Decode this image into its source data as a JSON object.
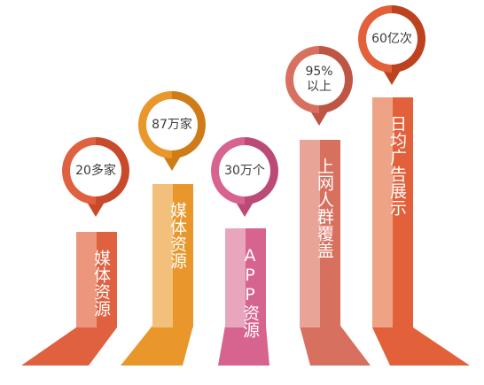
{
  "items": [
    {
      "value": "20多家",
      "label": "媒体资源",
      "colors": {
        "main": "#e0613f",
        "light": "#ec967d",
        "dark": "#c84a2a"
      }
    },
    {
      "value": "87万家",
      "label": "媒体资源",
      "colors": {
        "main": "#e9962b",
        "light": "#f2c07a",
        "dark": "#cf7c18"
      }
    },
    {
      "value": "30万个",
      "label": "APP资源",
      "colors": {
        "main": "#d6648e",
        "light": "#e8a6bd",
        "dark": "#bb4a76"
      }
    },
    {
      "value": "95%\n以上",
      "label": "上网人群覆盖",
      "colors": {
        "main": "#d8705f",
        "light": "#e8a496",
        "dark": "#bf5545"
      }
    },
    {
      "value": "60亿次",
      "label": "日均广告展示",
      "colors": {
        "main": "#e2603a",
        "light": "#eea386",
        "dark": "#bc4220"
      }
    }
  ]
}
